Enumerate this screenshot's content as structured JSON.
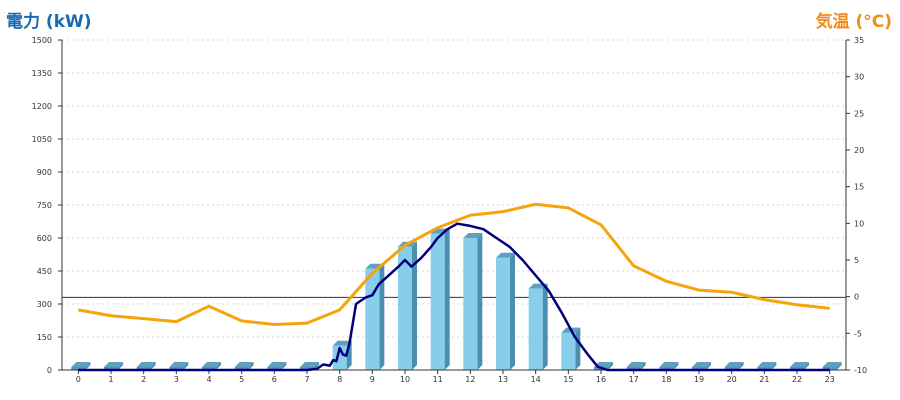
{
  "chart_data": {
    "type": "bar",
    "title_left": "電力 (kW)",
    "title_right": "気温 (°C)",
    "categories": [
      "0",
      "1",
      "2",
      "3",
      "4",
      "5",
      "6",
      "7",
      "8",
      "9",
      "10",
      "11",
      "12",
      "13",
      "14",
      "15",
      "16",
      "17",
      "18",
      "19",
      "20",
      "21",
      "22",
      "23"
    ],
    "y_left": {
      "min": 0,
      "max": 1500,
      "ticks": [
        0,
        150,
        300,
        450,
        600,
        750,
        900,
        1050,
        1200,
        1350,
        1500
      ],
      "reference_line": 330
    },
    "y_right": {
      "min": -10,
      "max": 35,
      "ticks": [
        -10,
        -5,
        0,
        5,
        10,
        15,
        20,
        25,
        30,
        35
      ]
    },
    "grid": true,
    "series": [
      {
        "kind": "bar",
        "color": "#87ceeb",
        "values": [
          0,
          0,
          0,
          0,
          0,
          0,
          0,
          0,
          110,
          460,
          560,
          620,
          600,
          510,
          370,
          170,
          0,
          0,
          0,
          0,
          0,
          0,
          0,
          0
        ]
      },
      {
        "kind": "line",
        "axis": "left",
        "color": "#00007a",
        "x": [
          0,
          1,
          2,
          3,
          4,
          5,
          6,
          7,
          7.3,
          7.5,
          7.7,
          7.8,
          7.9,
          8.0,
          8.1,
          8.2,
          8.3,
          8.5,
          8.8,
          9.0,
          9.2,
          9.5,
          9.8,
          9.9,
          10.0,
          10.2,
          10.5,
          10.8,
          11.0,
          11.3,
          11.6,
          12.0,
          12.4,
          12.8,
          13.2,
          13.6,
          14.0,
          14.4,
          14.8,
          15.2,
          15.6,
          15.9,
          16.2,
          17,
          18,
          19,
          20,
          21,
          22,
          23
        ],
        "y": [
          0,
          0,
          0,
          0,
          0,
          0,
          0,
          0,
          5,
          25,
          20,
          45,
          40,
          100,
          70,
          65,
          120,
          300,
          330,
          340,
          390,
          430,
          470,
          485,
          500,
          470,
          510,
          560,
          600,
          640,
          665,
          655,
          640,
          600,
          560,
          500,
          430,
          360,
          260,
          150,
          70,
          15,
          0,
          0,
          0,
          0,
          0,
          0,
          0,
          0
        ]
      },
      {
        "kind": "line",
        "axis": "right",
        "color": "#f5a40c",
        "x": [
          0,
          1,
          2,
          3,
          4,
          5,
          6,
          7,
          8,
          9,
          10,
          11,
          12,
          13,
          14,
          15,
          16,
          17,
          18,
          19,
          20,
          21,
          22,
          23
        ],
        "y": [
          -1.8,
          -2.6,
          -3.0,
          -3.4,
          -1.3,
          -3.3,
          -3.8,
          -3.6,
          -1.8,
          3.2,
          7.0,
          9.4,
          11.1,
          11.6,
          12.6,
          12.1,
          9.8,
          4.2,
          2.1,
          0.9,
          0.6,
          -0.4,
          -1.1,
          -1.6
        ]
      }
    ]
  }
}
